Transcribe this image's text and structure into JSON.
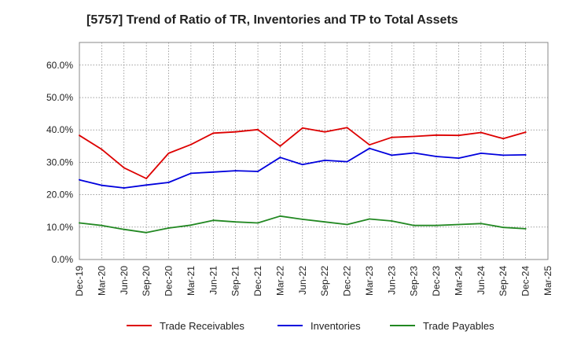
{
  "chart_data": {
    "type": "line",
    "title": "[5757]  Trend of Ratio of TR, Inventories and TP to Total Assets",
    "xlabel": "",
    "ylabel": "",
    "x": [
      "Dec-19",
      "Mar-20",
      "Jun-20",
      "Sep-20",
      "Dec-20",
      "Mar-21",
      "Jun-21",
      "Sep-21",
      "Dec-21",
      "Mar-22",
      "Jun-22",
      "Sep-22",
      "Dec-22",
      "Mar-23",
      "Jun-23",
      "Sep-23",
      "Dec-23",
      "Mar-24",
      "Jun-24",
      "Sep-24",
      "Dec-24",
      "Mar-25"
    ],
    "ylim": [
      0,
      0.67
    ],
    "yticks": [
      0,
      0.1,
      0.2,
      0.3,
      0.4,
      0.5,
      0.6
    ],
    "ytick_labels": [
      "0.0%",
      "10.0%",
      "20.0%",
      "30.0%",
      "40.0%",
      "50.0%",
      "60.0%"
    ],
    "grid": true,
    "legend_position": "bottom",
    "series": [
      {
        "name": "Trade Receivables",
        "color": "#dd0000",
        "values": [
          0.383,
          0.34,
          0.283,
          0.25,
          0.328,
          0.355,
          0.39,
          0.394,
          0.401,
          0.35,
          0.406,
          0.394,
          0.407,
          0.354,
          0.377,
          0.38,
          0.384,
          0.383,
          0.392,
          0.373,
          0.393,
          null
        ]
      },
      {
        "name": "Inventories",
        "color": "#0000dd",
        "values": [
          0.246,
          0.229,
          0.221,
          0.23,
          0.238,
          0.266,
          0.27,
          0.274,
          0.272,
          0.315,
          0.293,
          0.306,
          0.302,
          0.343,
          0.322,
          0.329,
          0.318,
          0.313,
          0.328,
          0.322,
          0.323,
          null
        ]
      },
      {
        "name": "Trade Payables",
        "color": "#228822",
        "values": [
          0.113,
          0.105,
          0.093,
          0.083,
          0.097,
          0.106,
          0.121,
          0.116,
          0.113,
          0.134,
          0.124,
          0.116,
          0.108,
          0.125,
          0.119,
          0.105,
          0.105,
          0.108,
          0.111,
          0.099,
          0.095,
          null
        ]
      }
    ]
  }
}
